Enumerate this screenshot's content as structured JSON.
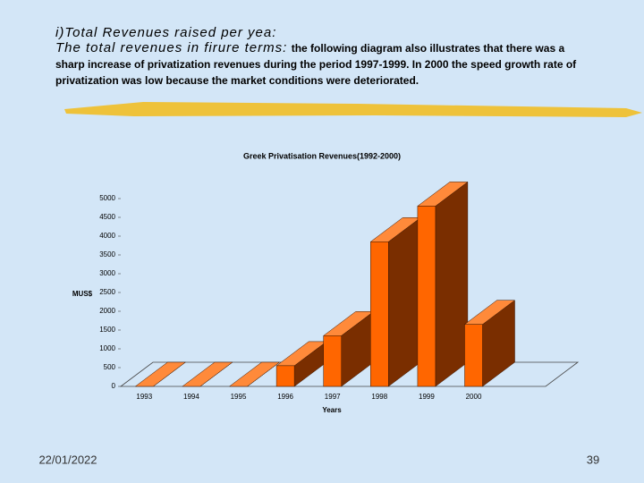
{
  "header": {
    "heading": "i)Total Revenues raised per yea:",
    "lead": "The total revenues in firure terms:",
    "body": "the following diagram  also illustrates that there was a sharp increase of privatization revenues during the period 1997-1999. In 2000 the speed growth rate of privatization was low because the market conditions were deteriorated."
  },
  "chart_data": {
    "type": "bar3d",
    "title": "Greek Privatisation Revenues(1992-2000)",
    "y_label": "MUS$",
    "x_label": "Years",
    "categories": [
      "1993",
      "1994",
      "1995",
      "1996",
      "1997",
      "1998",
      "1999",
      "2000"
    ],
    "values": [
      0,
      0,
      0,
      550,
      1350,
      3850,
      4800,
      1650
    ],
    "color": "#ff6600",
    "ylim": [
      0,
      5000
    ],
    "yticks": [
      0,
      500,
      1000,
      1500,
      2000,
      2500,
      3000,
      3500,
      4000,
      4500,
      5000
    ],
    "grid": false
  },
  "footer": {
    "date": "22/01/2022",
    "page": "39"
  }
}
